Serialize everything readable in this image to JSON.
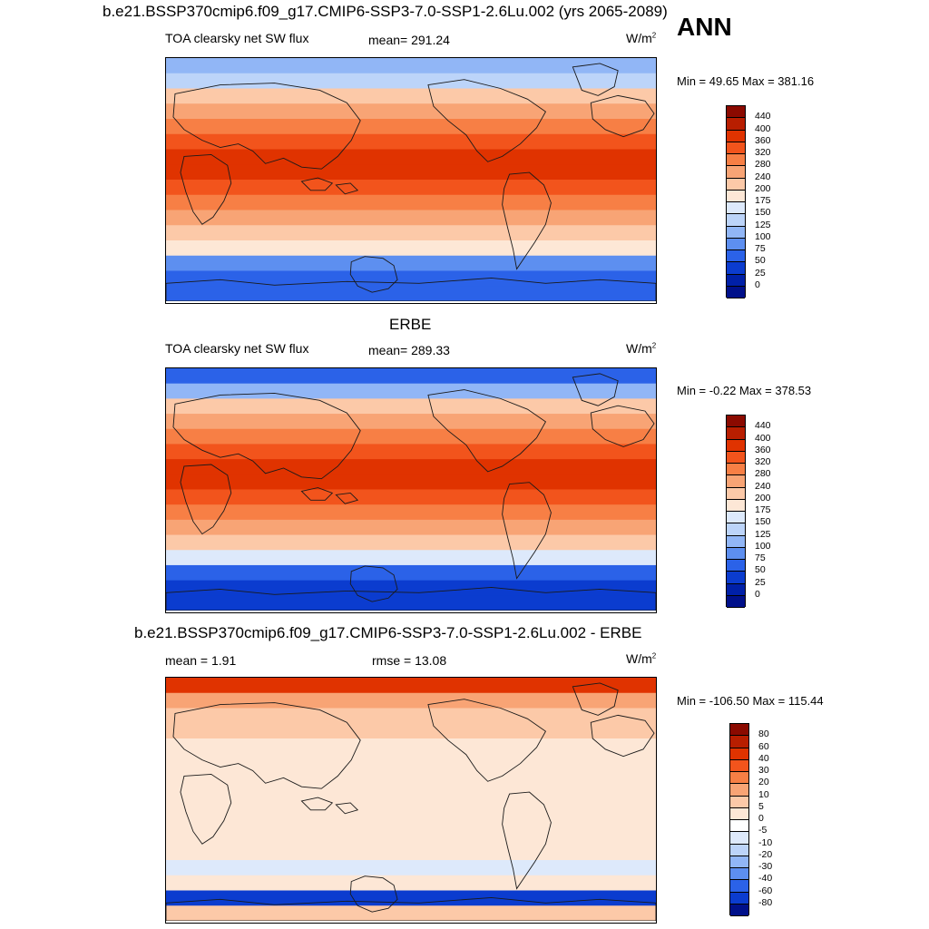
{
  "title_main": "b.e21.BSSP370cmip6.f09_g17.CMIP6-SSP3-7.0-SSP1-2.6Lu.002 (yrs 2065-2089)",
  "season": "ANN",
  "panels": [
    {
      "id": "model",
      "heading": "",
      "left_label": "TOA clearsky net SW flux",
      "center_label": "mean= 291.24",
      "unit_base": "W/m",
      "unit_exp": "2",
      "minmax": "Min =  49.65 Max = 381.16",
      "colorbar": {
        "labels": [
          "440",
          "400",
          "360",
          "320",
          "280",
          "240",
          "200",
          "175",
          "150",
          "125",
          "100",
          "75",
          "50",
          "25",
          "0"
        ],
        "colors": [
          "#8b0a00",
          "#b81e00",
          "#e03300",
          "#f2541c",
          "#f77f45",
          "#f8a475",
          "#fcc9a8",
          "#fde7d6",
          "#dde9fb",
          "#bcd4f9",
          "#91b6f6",
          "#5d8ff0",
          "#2b62e8",
          "#0b3ccf",
          "#0020a8",
          "#00108a"
        ]
      },
      "zonal_colors": [
        "#91b6f6",
        "#bcd4f9",
        "#fcc9a8",
        "#f8a475",
        "#f77f45",
        "#f2541c",
        "#e03300",
        "#e03300",
        "#f2541c",
        "#f77f45",
        "#f8a475",
        "#fcc9a8",
        "#fde7d6",
        "#5d8ff0",
        "#2b62e8",
        "#2b62e8"
      ]
    },
    {
      "id": "obs",
      "heading": "ERBE",
      "left_label": "TOA clearsky net SW flux",
      "center_label": "mean= 289.33",
      "unit_base": "W/m",
      "unit_exp": "2",
      "minmax": "Min =  -0.22 Max = 378.53",
      "colorbar": {
        "labels": [
          "440",
          "400",
          "360",
          "320",
          "280",
          "240",
          "200",
          "175",
          "150",
          "125",
          "100",
          "75",
          "50",
          "25",
          "0"
        ],
        "colors": [
          "#8b0a00",
          "#b81e00",
          "#e03300",
          "#f2541c",
          "#f77f45",
          "#f8a475",
          "#fcc9a8",
          "#fde7d6",
          "#dde9fb",
          "#bcd4f9",
          "#91b6f6",
          "#5d8ff0",
          "#2b62e8",
          "#0b3ccf",
          "#0020a8",
          "#00108a"
        ]
      },
      "zonal_colors": [
        "#2b62e8",
        "#91b6f6",
        "#fcc9a8",
        "#f8a475",
        "#f77f45",
        "#f2541c",
        "#e03300",
        "#e03300",
        "#f2541c",
        "#f77f45",
        "#f8a475",
        "#fcc9a8",
        "#dde9fb",
        "#2b62e8",
        "#0b3ccf",
        "#0b3ccf"
      ]
    },
    {
      "id": "diff",
      "heading": "b.e21.BSSP370cmip6.f09_g17.CMIP6-SSP3-7.0-SSP1-2.6Lu.002 - ERBE",
      "left_label": "mean =   1.91",
      "center_label": "rmse =  13.08",
      "unit_base": "W/m",
      "unit_exp": "2",
      "minmax": "Min = -106.50 Max = 115.44",
      "colorbar": {
        "labels": [
          "80",
          "60",
          "40",
          "30",
          "20",
          "10",
          "5",
          "0",
          "-5",
          "-10",
          "-20",
          "-30",
          "-40",
          "-60",
          "-80"
        ],
        "colors": [
          "#8b0a00",
          "#b81e00",
          "#e03300",
          "#f2541c",
          "#f77f45",
          "#f8a475",
          "#fcc9a8",
          "#fde7d6",
          "#ffffff",
          "#dde9fb",
          "#bcd4f9",
          "#91b6f6",
          "#5d8ff0",
          "#2b62e8",
          "#0b3ccf",
          "#00108a"
        ]
      },
      "zonal_colors": [
        "#e03300",
        "#f8a475",
        "#fcc9a8",
        "#fcc9a8",
        "#fde7d6",
        "#fde7d6",
        "#fde7d6",
        "#fde7d6",
        "#fde7d6",
        "#fde7d6",
        "#fde7d6",
        "#fde7d6",
        "#dde9fb",
        "#fde7d6",
        "#0b3ccf",
        "#fcc9a8"
      ]
    }
  ]
}
